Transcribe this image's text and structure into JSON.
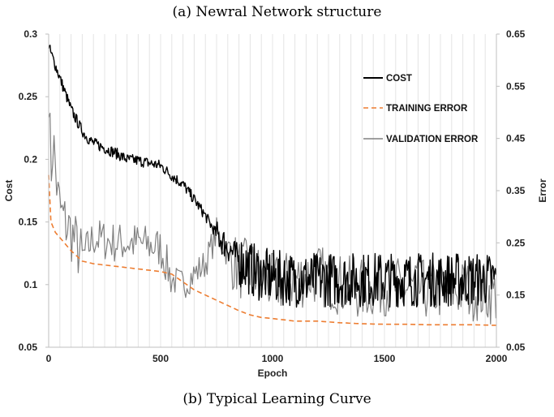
{
  "captions": {
    "top": "(a) Newral Network structure",
    "bottom": "(b) Typical Learning Curve"
  },
  "chart_data": {
    "type": "line",
    "xlabel": "Epoch",
    "ylabel": "Cost",
    "y2label": "Error",
    "xlim": [
      0,
      2000
    ],
    "ylim": [
      0.05,
      0.3
    ],
    "y2lim": [
      0.05,
      0.65
    ],
    "x_ticks": [
      "0",
      "500",
      "1000",
      "1500",
      "2000"
    ],
    "y_ticks": [
      "0.05",
      "0.1",
      "0.15",
      "0.2",
      "0.25",
      "0.3"
    ],
    "y2_ticks": [
      "0.05",
      "0.15",
      "0.25",
      "0.35",
      "0.45",
      "0.55",
      "0.65"
    ],
    "grid": "vertical",
    "legend_position": "top-right",
    "series": [
      {
        "name": "COST",
        "axis": "left",
        "color": "#000000",
        "style": "solid",
        "x": [
          0,
          20,
          40,
          60,
          80,
          100,
          120,
          140,
          160,
          180,
          200,
          250,
          300,
          350,
          400,
          450,
          500,
          550,
          600,
          650,
          700,
          750,
          800,
          850,
          900,
          950,
          1000,
          1100,
          1200,
          1300,
          1400,
          1500,
          1600,
          1700,
          1800,
          1900,
          2000
        ],
        "y": [
          0.29,
          0.28,
          0.27,
          0.26,
          0.25,
          0.24,
          0.233,
          0.226,
          0.22,
          0.216,
          0.213,
          0.209,
          0.205,
          0.2,
          0.199,
          0.197,
          0.195,
          0.187,
          0.18,
          0.168,
          0.155,
          0.14,
          0.13,
          0.12,
          0.113,
          0.108,
          0.106,
          0.104,
          0.104,
          0.104,
          0.104,
          0.104,
          0.104,
          0.104,
          0.104,
          0.104,
          0.104
        ]
      },
      {
        "name": "TRAINING ERROR",
        "axis": "right",
        "color": "#ed7d31",
        "style": "dashed",
        "x": [
          0,
          10,
          30,
          60,
          100,
          150,
          200,
          300,
          400,
          500,
          550,
          600,
          650,
          700,
          750,
          800,
          850,
          900,
          950,
          1000,
          1100,
          1200,
          1300,
          1400,
          1500,
          1600,
          1700,
          1800,
          1900,
          2000
        ],
        "y": [
          0.38,
          0.29,
          0.27,
          0.255,
          0.235,
          0.215,
          0.21,
          0.205,
          0.2,
          0.195,
          0.19,
          0.175,
          0.16,
          0.15,
          0.14,
          0.13,
          0.12,
          0.112,
          0.107,
          0.105,
          0.1,
          0.1,
          0.097,
          0.095,
          0.094,
          0.094,
          0.093,
          0.093,
          0.093,
          0.092
        ]
      },
      {
        "name": "VALIDATION ERROR",
        "axis": "right",
        "color": "#808080",
        "style": "solid",
        "x": [
          0,
          10,
          20,
          40,
          60,
          100,
          150,
          200,
          300,
          400,
          500,
          550,
          600,
          650,
          700,
          750,
          800,
          850,
          900,
          1000,
          1100,
          1200,
          1300,
          1400,
          1500,
          1600,
          1700,
          1800,
          1900,
          2000
        ],
        "y": [
          0.55,
          0.38,
          0.45,
          0.34,
          0.3,
          0.27,
          0.22,
          0.26,
          0.25,
          0.25,
          0.24,
          0.18,
          0.17,
          0.19,
          0.21,
          0.27,
          0.23,
          0.2,
          0.2,
          0.17,
          0.18,
          0.19,
          0.17,
          0.16,
          0.17,
          0.16,
          0.16,
          0.16,
          0.16,
          0.15
        ]
      }
    ]
  }
}
